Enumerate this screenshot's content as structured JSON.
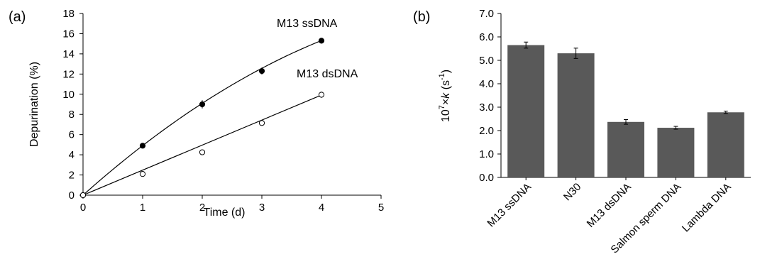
{
  "chart_data": [
    {
      "panel": "(a)",
      "type": "scatter",
      "xlabel": "Time (d)",
      "ylabel": "Depurination (%)",
      "xlim": [
        0,
        5
      ],
      "ylim": [
        0,
        18
      ],
      "xticks": [
        "0",
        "1",
        "2",
        "3",
        "4",
        "5"
      ],
      "yticks": [
        "0",
        "2",
        "4",
        "6",
        "8",
        "10",
        "12",
        "14",
        "16",
        "18"
      ],
      "grid": false,
      "series": [
        {
          "name": "M13 ssDNA",
          "marker": "filled-circle",
          "fit": "curve",
          "x": [
            0,
            1,
            2,
            3,
            4
          ],
          "y": [
            0,
            4.9,
            9.0,
            12.3,
            15.3
          ],
          "err": [
            0,
            0.15,
            0.4,
            0.35,
            0.25
          ]
        },
        {
          "name": "M13 dsDNA",
          "marker": "open-circle",
          "fit": "line",
          "x": [
            0,
            1,
            2,
            3,
            4
          ],
          "y": [
            0,
            2.1,
            4.25,
            7.15,
            9.95
          ],
          "err": [
            0,
            0.15,
            0.2,
            0.25,
            0.3
          ]
        }
      ]
    },
    {
      "panel": "(b)",
      "type": "bar",
      "ylabel_pre": "10",
      "ylabel_sup1": "7",
      "ylabel_mid": "×",
      "ylabel_k": "k",
      "ylabel_post": " (s",
      "ylabel_sup2": "-1",
      "ylabel_end": ")",
      "ylim": [
        0,
        7
      ],
      "yticks": [
        "0.0",
        "1.0",
        "2.0",
        "3.0",
        "4.0",
        "5.0",
        "6.0",
        "7.0"
      ],
      "grid": false,
      "bar_color": "#595959",
      "categories": [
        "M13 ssDNA",
        "N30",
        "M13 dsDNA",
        "Salmon sperm DNA",
        "Lambda DNA"
      ],
      "values": [
        5.65,
        5.3,
        2.37,
        2.12,
        2.78
      ],
      "errors": [
        0.13,
        0.22,
        0.1,
        0.06,
        0.05
      ]
    }
  ]
}
